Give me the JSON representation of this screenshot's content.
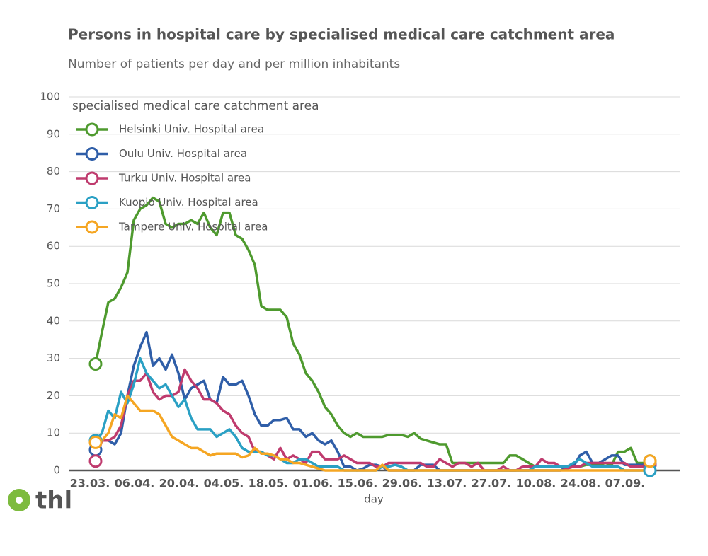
{
  "logo": "thl",
  "chart_data": {
    "type": "line",
    "title": "Persons in hospital care by specialised medical care catchment area",
    "subtitle": "Number of patients per day and per million inhabitants",
    "x_label": "day",
    "legend_title": "specialised medical care catchment area",
    "legend": "upper left",
    "grid": true,
    "ylim": [
      0,
      100
    ],
    "yticks": [
      0,
      10,
      20,
      30,
      40,
      50,
      60,
      70,
      80,
      90,
      100
    ],
    "categories": [
      "23.03.",
      null,
      null,
      null,
      null,
      null,
      null,
      "06.04.",
      null,
      null,
      null,
      null,
      null,
      null,
      "20.04.",
      null,
      null,
      null,
      null,
      null,
      null,
      "04.05.",
      null,
      null,
      null,
      null,
      null,
      null,
      "18.05.",
      null,
      null,
      null,
      null,
      null,
      null,
      "01.06.",
      null,
      null,
      null,
      null,
      null,
      null,
      "15.06.",
      null,
      null,
      null,
      null,
      null,
      null,
      "29.06.",
      null,
      null,
      null,
      null,
      null,
      null,
      "13.07.",
      null,
      null,
      null,
      null,
      null,
      null,
      "27.07.",
      null,
      null,
      null,
      null,
      null,
      null,
      "10.08.",
      null,
      null,
      null,
      null,
      null,
      null,
      "24.08.",
      null,
      null,
      null,
      null,
      null,
      null,
      "07.09.",
      null,
      null,
      null
    ],
    "series": [
      {
        "name": "Helsinki Univ. Hospital area",
        "color": "#4e9a2e",
        "values": [
          28.5,
          37,
          45,
          46,
          49,
          53,
          67,
          70,
          71,
          73,
          72,
          66,
          65,
          66,
          66,
          67,
          66,
          69,
          65,
          63,
          69,
          69,
          63,
          62,
          59,
          55,
          44,
          43,
          43,
          43,
          41,
          34,
          31,
          26,
          24,
          21,
          17,
          15,
          12,
          10,
          9,
          10,
          9,
          9,
          9,
          9,
          9.5,
          9.5,
          9.5,
          9,
          10,
          8.5,
          8,
          7.5,
          7,
          7,
          2,
          2,
          2,
          2,
          2,
          2,
          2,
          2,
          2,
          4,
          4,
          3,
          2,
          1,
          1,
          1,
          1,
          1,
          1,
          1,
          1,
          1.5,
          1.5,
          1.5,
          2,
          1.5,
          5,
          5,
          6,
          2,
          2,
          2.5
        ]
      },
      {
        "name": "Oulu Univ. Hospital area",
        "color": "#2f5ea8",
        "values": [
          5.5,
          8,
          8,
          7,
          10,
          20,
          28,
          33,
          37,
          28,
          30,
          27,
          31,
          26,
          19,
          22,
          23,
          24,
          19,
          18,
          25,
          23,
          23,
          24,
          20,
          15,
          12,
          12,
          13.5,
          13.5,
          14,
          11,
          11,
          9,
          10,
          8,
          7,
          8,
          5,
          1,
          1,
          0,
          0.5,
          1.5,
          1.5,
          1,
          0,
          0,
          0,
          0,
          0,
          1.5,
          1.5,
          1.5,
          0,
          0,
          0,
          0,
          0,
          0,
          0,
          0,
          0,
          0,
          0,
          0,
          0,
          0,
          0,
          0,
          0,
          0,
          0,
          0,
          1,
          1,
          4,
          5,
          2,
          2,
          3,
          4,
          4,
          1.5,
          1.5,
          1.5,
          1.5,
          1.5
        ]
      },
      {
        "name": "Turku Univ. Hospital area",
        "color": "#bf3b6e",
        "values": [
          2.5,
          8,
          8,
          9,
          12,
          20,
          24,
          24,
          26,
          21,
          19,
          20,
          20,
          21,
          27,
          24,
          22,
          19,
          19,
          18,
          16,
          15,
          12,
          10,
          9,
          5,
          5,
          4,
          3,
          6,
          3,
          4,
          3,
          2,
          5,
          5,
          3,
          3,
          3,
          4,
          3,
          2,
          2,
          2,
          1,
          1,
          2,
          2,
          2,
          2,
          2,
          2,
          1,
          1,
          3,
          2,
          1,
          2,
          2,
          1,
          2,
          0,
          0,
          0,
          1,
          0,
          0,
          1,
          1,
          1,
          3,
          2,
          2,
          1,
          0.5,
          1,
          1,
          2,
          2,
          2,
          2,
          2,
          2,
          2,
          1,
          1,
          1,
          1.5
        ]
      },
      {
        "name": "Kuopio Univ. Hospital area",
        "color": "#2aa0c4",
        "values": [
          8,
          10,
          16,
          14,
          21,
          18,
          23,
          30,
          26,
          24,
          22,
          23,
          20,
          17,
          19,
          14,
          11,
          11,
          11,
          9,
          10,
          11,
          9,
          6,
          5,
          5,
          5,
          4,
          4,
          3,
          2,
          2,
          3,
          3,
          2,
          1,
          1,
          1,
          1,
          0,
          0,
          0,
          0,
          0,
          0,
          1,
          1,
          1.5,
          1,
          0,
          0,
          0,
          0,
          0,
          0,
          0,
          0,
          0,
          0,
          0,
          0,
          0,
          0,
          0,
          0,
          0,
          0,
          0,
          0,
          1,
          1,
          1,
          1,
          1,
          1,
          2,
          3,
          2,
          1,
          1,
          1,
          1,
          1,
          0,
          0,
          0,
          0,
          0
        ]
      },
      {
        "name": "Tampere Univ. Hospital area",
        "color": "#f5a623",
        "values": [
          7.5,
          8,
          10,
          15,
          14,
          20,
          18,
          16,
          16,
          16,
          15,
          12,
          9,
          8,
          7,
          6,
          6,
          5,
          4,
          4.5,
          4.5,
          4.5,
          4.5,
          3.5,
          4,
          6,
          4.5,
          4.5,
          4,
          3,
          3,
          2,
          2,
          1.5,
          1,
          0.5,
          0,
          0,
          0,
          0,
          0,
          0,
          0,
          0,
          0,
          1.5,
          0,
          0,
          0,
          0,
          0,
          0,
          0,
          0,
          0,
          0,
          0,
          0,
          0,
          0,
          0,
          0,
          0,
          0,
          0,
          0,
          0,
          0,
          0,
          0,
          0,
          0,
          0,
          0,
          0,
          0,
          0,
          0,
          0,
          0,
          0,
          0,
          0,
          0,
          0,
          0,
          0,
          2.5
        ]
      }
    ]
  }
}
